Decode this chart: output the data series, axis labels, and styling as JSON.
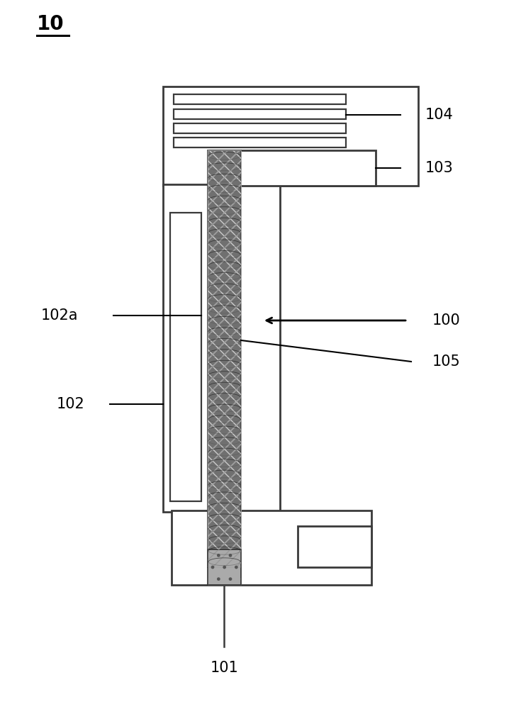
{
  "bg_color": "#ffffff",
  "line_color": "#3a3a3a",
  "label_10": "10",
  "label_101": "101",
  "label_102": "102",
  "label_102a": "102a",
  "label_103": "103",
  "label_104": "104",
  "label_105": "105",
  "label_100": "100",
  "fig_width": 7.35,
  "fig_height": 10.0
}
